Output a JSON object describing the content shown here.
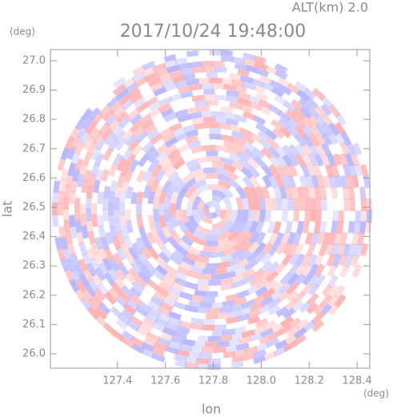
{
  "chart_data": {
    "type": "ppi",
    "title": "2017/10/24 19:48:00",
    "subtitle": "ALT(km) 2.0",
    "x_label": "lon",
    "y_label": "lat",
    "x_unit": "(deg)",
    "y_unit": "(deg)",
    "xlim": [
      127.12,
      128.453
    ],
    "ylim": [
      25.951,
      27.038
    ],
    "xticks": [
      127.4,
      127.6,
      127.8,
      {
        "value": 128.0,
        "label": "128.0"
      },
      128.2,
      128.4
    ],
    "yticks": [
      {
        "value": 26.0,
        "label": "26.0"
      },
      26.1,
      26.2,
      26.3,
      26.4,
      26.5,
      26.6,
      26.7,
      26.8,
      26.9,
      {
        "value": 27.0,
        "label": "27.0"
      }
    ],
    "colors": [
      "#ffb3b3",
      "#b8b8ff"
    ]
  }
}
